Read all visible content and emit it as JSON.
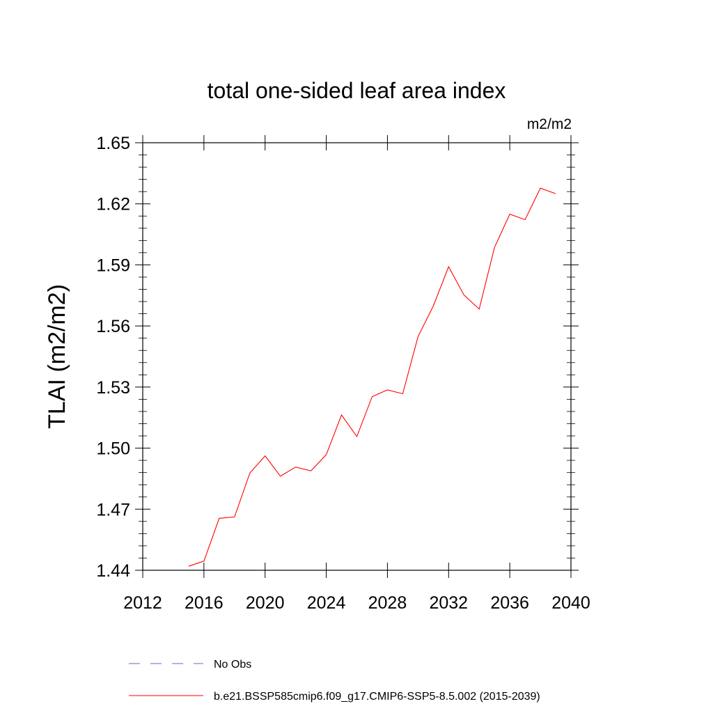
{
  "chart_data": {
    "type": "line",
    "title": "total one-sided leaf area index",
    "units_label": "m2/m2",
    "ylabel": "TLAI  (m2/m2)",
    "xlabel": "",
    "xlim": [
      2012,
      2040
    ],
    "ylim": [
      1.44,
      1.65
    ],
    "x_ticks": [
      2012,
      2016,
      2020,
      2024,
      2028,
      2032,
      2036,
      2040
    ],
    "x_tick_labels": [
      "2012",
      "2016",
      "2020",
      "2024",
      "2028",
      "2032",
      "2036",
      "2040"
    ],
    "y_ticks": [
      1.44,
      1.47,
      1.5,
      1.53,
      1.56,
      1.59,
      1.62,
      1.65
    ],
    "y_tick_labels": [
      "1.44",
      "1.47",
      "1.50",
      "1.53",
      "1.56",
      "1.59",
      "1.62",
      "1.65"
    ],
    "grid": false,
    "series": [
      {
        "name": "b.e21.BSSP585cmip6.f09_g17.CMIP6-SSP5-8.5.002 (2015-2039)",
        "color": "#ff0000",
        "dash": "solid",
        "x": [
          2015,
          2016,
          2017,
          2018,
          2019,
          2020,
          2021,
          2022,
          2023,
          2024,
          2025,
          2026,
          2027,
          2028,
          2029,
          2030,
          2031,
          2032,
          2033,
          2034,
          2035,
          2036,
          2037,
          2038,
          2039
        ],
        "y": [
          1.442,
          1.4445,
          1.4655,
          1.4662,
          1.4877,
          1.4962,
          1.4862,
          1.4907,
          1.4888,
          1.4968,
          1.5163,
          1.5057,
          1.5253,
          1.5286,
          1.5267,
          1.5548,
          1.5698,
          1.5891,
          1.5752,
          1.5683,
          1.5986,
          1.6149,
          1.6122,
          1.6277,
          1.625
        ]
      }
    ],
    "legend": [
      {
        "label": "No Obs",
        "color": "#6666cc",
        "dash": "dashed"
      },
      {
        "label": "b.e21.BSSP585cmip6.f09_g17.CMIP6-SSP5-8.5.002 (2015-2039)",
        "color": "#ff0000",
        "dash": "solid"
      }
    ],
    "legend_position": "bottom"
  }
}
